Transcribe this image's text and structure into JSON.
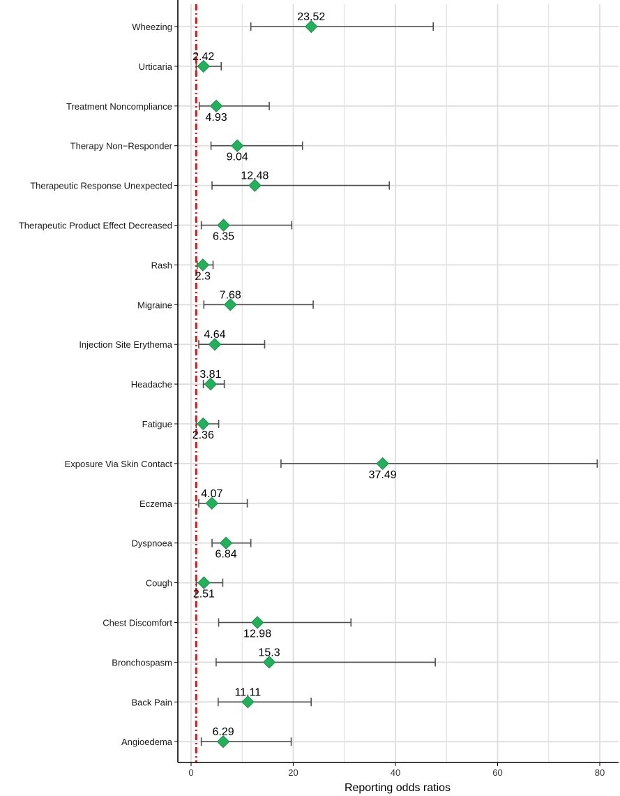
{
  "chart_data": {
    "type": "forest",
    "xlabel": "Reporting odds ratios",
    "xlim": [
      -2.5,
      83
    ],
    "xticks": [
      0,
      20,
      40,
      60,
      80
    ],
    "reference_line": 1,
    "colors": {
      "point": "#21b15a",
      "point_stroke": "#1a8f48",
      "errorbar": "#4d4d4d",
      "reference": "#ee1111",
      "grid": "#dedede",
      "axis": "#000000"
    },
    "series": [
      {
        "name": "Wheezing",
        "ror": 23.52,
        "lower": 11.7,
        "upper": 47.4,
        "label_pos": "above"
      },
      {
        "name": "Urticaria",
        "ror": 2.42,
        "lower": 1.0,
        "upper": 5.9,
        "label_pos": "above"
      },
      {
        "name": "Treatment Noncompliance",
        "ror": 4.93,
        "lower": 1.6,
        "upper": 15.3,
        "label_pos": "below"
      },
      {
        "name": "Therapy Non−Responder",
        "ror": 9.04,
        "lower": 3.9,
        "upper": 21.8,
        "label_pos": "below"
      },
      {
        "name": "Therapeutic Response Unexpected",
        "ror": 12.48,
        "lower": 4.1,
        "upper": 38.8,
        "label_pos": "above"
      },
      {
        "name": "Therapeutic Product Effect Decreased",
        "ror": 6.35,
        "lower": 2.0,
        "upper": 19.7,
        "label_pos": "below"
      },
      {
        "name": "Rash",
        "ror": 2.3,
        "lower": 1.2,
        "upper": 4.3,
        "label_pos": "below"
      },
      {
        "name": "Migraine",
        "ror": 7.68,
        "lower": 2.5,
        "upper": 23.9,
        "label_pos": "above"
      },
      {
        "name": "Injection Site Erythema",
        "ror": 4.64,
        "lower": 1.5,
        "upper": 14.4,
        "label_pos": "above"
      },
      {
        "name": "Headache",
        "ror": 3.81,
        "lower": 2.4,
        "upper": 6.5,
        "label_pos": "above"
      },
      {
        "name": "Fatigue",
        "ror": 2.36,
        "lower": 1.0,
        "upper": 5.4,
        "label_pos": "below"
      },
      {
        "name": "Exposure Via Skin Contact",
        "ror": 37.49,
        "lower": 17.6,
        "upper": 79.5,
        "label_pos": "below"
      },
      {
        "name": "Eczema",
        "ror": 4.07,
        "lower": 1.5,
        "upper": 11.0,
        "label_pos": "above"
      },
      {
        "name": "Dyspnoea",
        "ror": 6.84,
        "lower": 4.1,
        "upper": 11.7,
        "label_pos": "below"
      },
      {
        "name": "Cough",
        "ror": 2.51,
        "lower": 1.0,
        "upper": 6.2,
        "label_pos": "below"
      },
      {
        "name": "Chest Discomfort",
        "ror": 12.98,
        "lower": 5.4,
        "upper": 31.3,
        "label_pos": "below"
      },
      {
        "name": "Bronchospasm",
        "ror": 15.3,
        "lower": 4.9,
        "upper": 47.8,
        "label_pos": "above"
      },
      {
        "name": "Back Pain",
        "ror": 11.11,
        "lower": 5.3,
        "upper": 23.5,
        "label_pos": "above"
      },
      {
        "name": "Angioedema",
        "ror": 6.29,
        "lower": 2.0,
        "upper": 19.6,
        "label_pos": "above"
      }
    ]
  }
}
